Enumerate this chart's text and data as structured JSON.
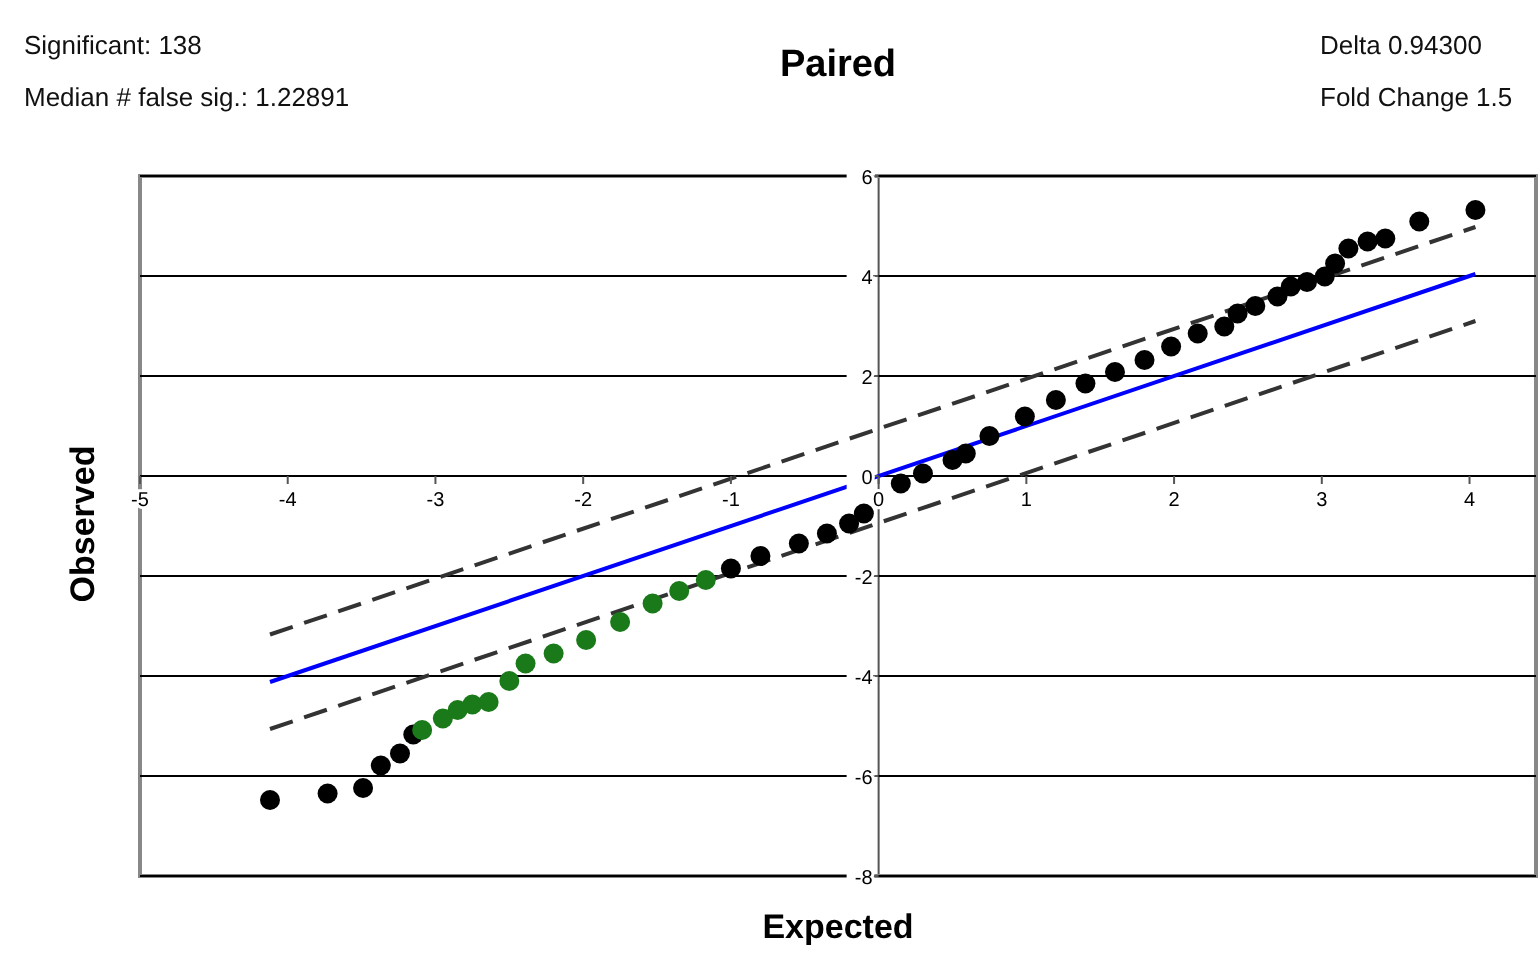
{
  "chart_data": {
    "type": "scatter",
    "title": "Paired",
    "xlabel": "Expected",
    "ylabel": "Observed",
    "annotations": [
      "Significant: 138",
      "Median # false sig.: 1.22891",
      "Delta 0.94300",
      "Fold Change 1.5"
    ],
    "xlim": [
      -5,
      4.45
    ],
    "xticks": [
      -5,
      -4,
      -3,
      -2,
      -1,
      0,
      1,
      2,
      3,
      4
    ],
    "ylim": [
      -8,
      6
    ],
    "yticks": [
      -8,
      -6,
      -4,
      -2,
      0,
      2,
      4,
      6
    ],
    "grid": "y",
    "series": [
      {
        "marker": "circle",
        "color": "#000000",
        "x": [
          -4.12,
          -3.73,
          -3.49,
          -3.37,
          -3.24,
          -3.15,
          -1.0,
          -0.8,
          -0.54,
          -0.35,
          -0.2,
          -0.1,
          0.15,
          0.3,
          0.5,
          0.59,
          0.75,
          0.99,
          1.2,
          1.4,
          1.6,
          1.8,
          1.98,
          2.16,
          2.34,
          2.43,
          2.55,
          2.7,
          2.79,
          2.9,
          3.02,
          3.09,
          3.18,
          3.31,
          3.43,
          3.66,
          4.04
        ],
        "values": [
          -6.48,
          -6.35,
          -6.24,
          -5.79,
          -5.55,
          -5.17,
          -1.85,
          -1.6,
          -1.35,
          -1.15,
          -0.95,
          -0.75,
          -0.15,
          0.05,
          0.32,
          0.45,
          0.8,
          1.19,
          1.52,
          1.85,
          2.08,
          2.32,
          2.59,
          2.85,
          2.99,
          3.25,
          3.4,
          3.59,
          3.79,
          3.88,
          3.99,
          4.25,
          4.55,
          4.69,
          4.75,
          5.09,
          5.32
        ]
      },
      {
        "marker": "circle",
        "color": "#1a7a1a",
        "x": [
          -3.09,
          -2.95,
          -2.85,
          -2.75,
          -2.64,
          -2.5,
          -2.39,
          -2.2,
          -1.98,
          -1.75,
          -1.53,
          -1.35,
          -1.17
        ],
        "values": [
          -5.08,
          -4.85,
          -4.68,
          -4.57,
          -4.52,
          -4.1,
          -3.75,
          -3.55,
          -3.28,
          -2.92,
          -2.55,
          -2.3,
          -2.08
        ]
      },
      {
        "type": "line",
        "color": "#0000ff",
        "line_style": "solid",
        "x": [
          -4.12,
          4.04
        ],
        "values": [
          -4.12,
          4.04
        ]
      },
      {
        "type": "line",
        "color": "#333333",
        "line_style": "dashed",
        "x": [
          -4.12,
          4.04
        ],
        "values": [
          -3.17,
          4.98
        ]
      },
      {
        "type": "line",
        "color": "#333333",
        "line_style": "dashed",
        "x": [
          -4.12,
          4.04
        ],
        "values": [
          -5.06,
          3.1
        ]
      }
    ]
  }
}
